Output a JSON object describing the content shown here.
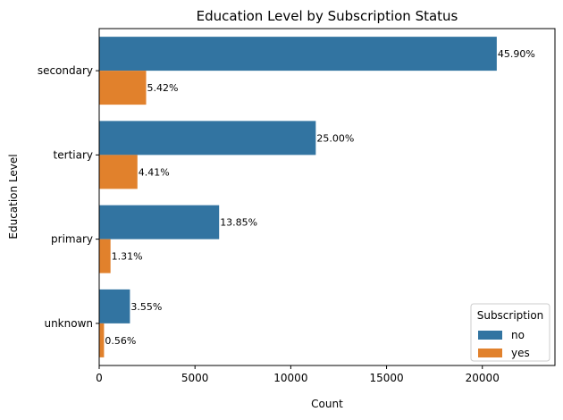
{
  "chart_data": {
    "type": "bar",
    "orientation": "horizontal",
    "title": "Education Level by Subscription Status",
    "xlabel": "Count",
    "ylabel": "Education Level",
    "categories": [
      "secondary",
      "tertiary",
      "primary",
      "unknown"
    ],
    "series": [
      {
        "name": "no",
        "color": "#3274a1",
        "values": [
          20752,
          11305,
          6260,
          1605
        ],
        "labels": [
          "45.90%",
          "25.00%",
          "13.85%",
          "3.55%"
        ]
      },
      {
        "name": "yes",
        "color": "#e1812c",
        "values": [
          2450,
          1996,
          591,
          252
        ],
        "labels": [
          "5.42%",
          "4.41%",
          "1.31%",
          "0.56%"
        ]
      }
    ],
    "xlim": [
      0,
      23790
    ],
    "xticks": [
      0,
      5000,
      10000,
      15000,
      20000
    ],
    "grid": false,
    "legend": {
      "title": "Subscription",
      "position": "bottom-right"
    }
  }
}
